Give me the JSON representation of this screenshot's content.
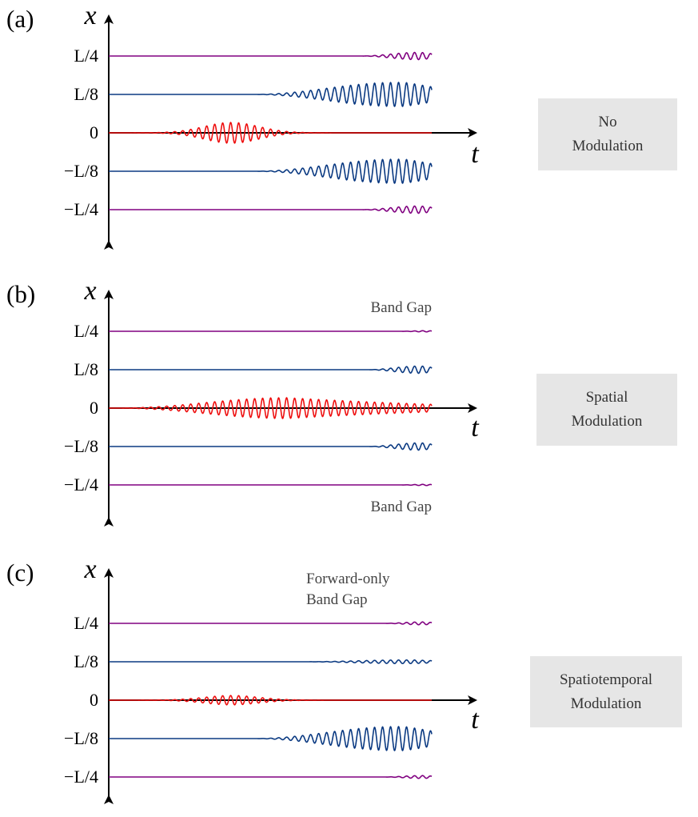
{
  "colors": {
    "outer": "#800080",
    "inner": "#0b3a82",
    "center": "#ee1111"
  },
  "panels": [
    {
      "id": "a",
      "letter": "(a)",
      "x_label": "x",
      "t_label": "t",
      "ticks": [
        "L/4",
        "L/8",
        "0",
        "−L/8",
        "−L/4"
      ],
      "annotation_top": [],
      "annotation_bottom": "",
      "modulation": [
        "No",
        "Modulation"
      ],
      "waves": {
        "outer": {
          "profile": "late",
          "start": 0.78,
          "amplitude": 0.3
        },
        "inner": {
          "profile": "late",
          "start": 0.45,
          "amplitude": 1.0
        },
        "center": {
          "profile": "packet",
          "center": 0.38,
          "width": 0.12,
          "amplitude": 1.0
        }
      }
    },
    {
      "id": "b",
      "letter": "(b)",
      "x_label": "x",
      "t_label": "t",
      "ticks": [
        "L/4",
        "L/8",
        "0",
        "−L/8",
        "−L/4"
      ],
      "annotation_top": [
        "Band Gap"
      ],
      "annotation_bottom": "Band Gap",
      "modulation": [
        "Spatial",
        "Modulation"
      ],
      "waves": {
        "outer": {
          "profile": "late",
          "start": 0.9,
          "amplitude": 0.05
        },
        "inner": {
          "profile": "late",
          "start": 0.8,
          "amplitude": 0.3
        },
        "center": {
          "profile": "plateau",
          "rise": 0.15,
          "peak": 0.55,
          "end_level": 0.6,
          "amplitude": 1.0
        }
      }
    },
    {
      "id": "c",
      "letter": "(c)",
      "x_label": "x",
      "t_label": "t",
      "ticks": [
        "L/4",
        "L/8",
        "0",
        "−L/8",
        "−L/4"
      ],
      "annotation_top": [
        "Forward-only",
        "Band Gap"
      ],
      "annotation_bottom": "",
      "modulation": [
        "Spatiotemporal",
        "Modulation"
      ],
      "waves": {
        "outer": {
          "profile": "late",
          "start": 0.85,
          "amplitude": 0.12
        },
        "inner_upper": {
          "profile": "late",
          "start": 0.6,
          "amplitude": 0.15
        },
        "center": {
          "profile": "packet",
          "center": 0.38,
          "width": 0.12,
          "amplitude": 0.45
        },
        "inner_lower": {
          "profile": "late",
          "start": 0.45,
          "amplitude": 1.0
        }
      }
    }
  ]
}
